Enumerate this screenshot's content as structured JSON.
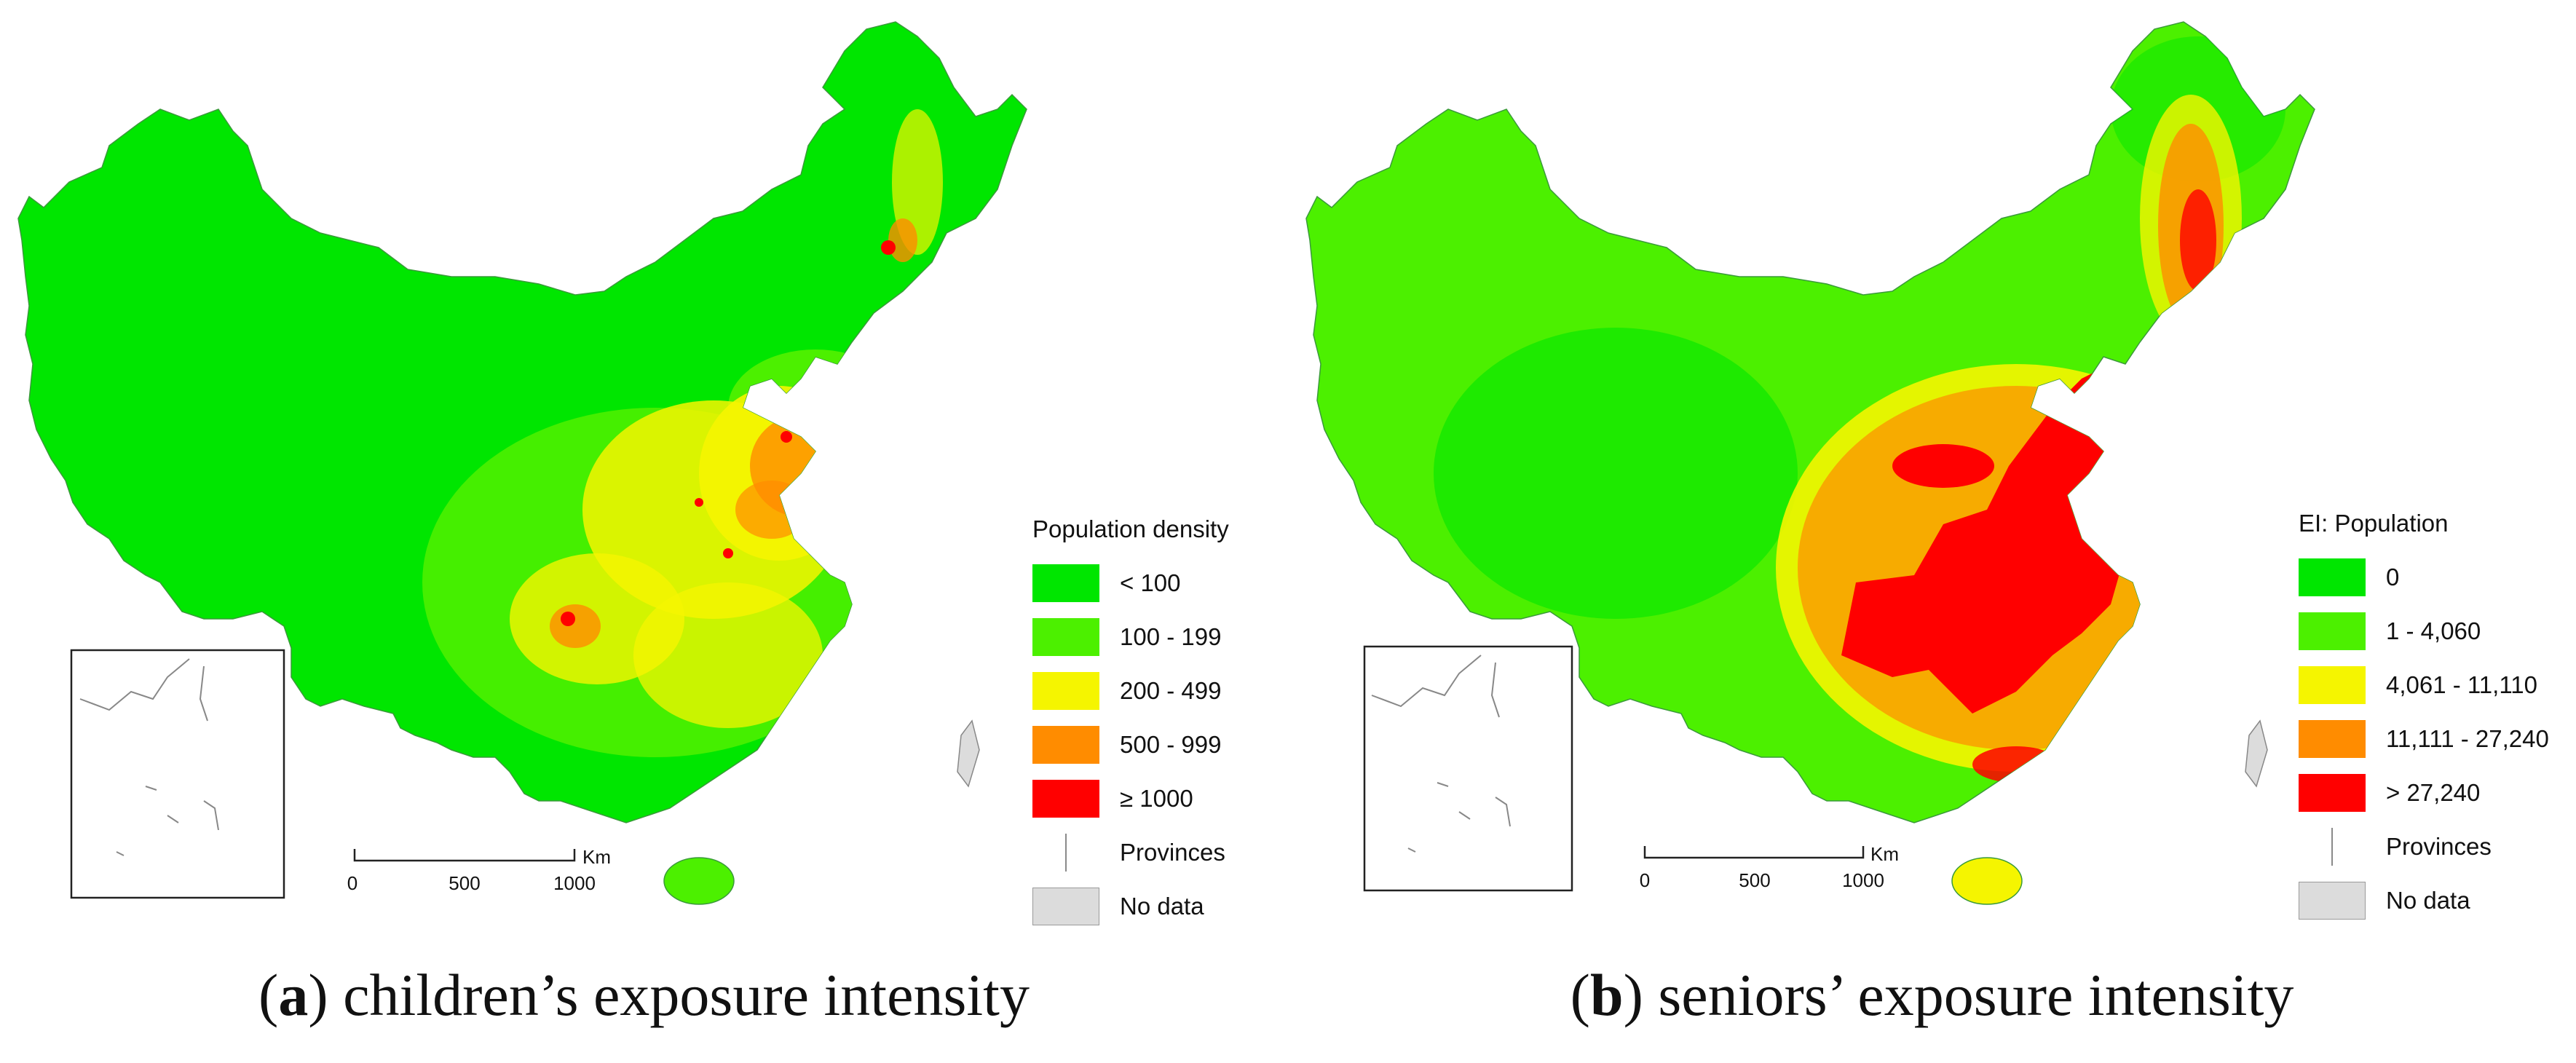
{
  "colors": {
    "green_dark": "#00e600",
    "green_light": "#4cf000",
    "yellow": "#f5f500",
    "orange": "#ff8c00",
    "red": "#ff0000",
    "gray": "#dcdcdc"
  },
  "panels": [
    {
      "id": "a",
      "caption_letter": "a",
      "caption_text": "children’s exposure intensity",
      "legend_title": "Population density",
      "legend": [
        {
          "label": "< 100",
          "color": "#00e600"
        },
        {
          "label": "100 - 199",
          "color": "#4cf000"
        },
        {
          "label": "200 - 499",
          "color": "#f5f500"
        },
        {
          "label": "500 - 999",
          "color": "#ff8c00"
        },
        {
          "label": "≥ 1000",
          "color": "#ff0000"
        }
      ],
      "provinces_label": "Provinces",
      "nodata_label": "No data",
      "scale": {
        "ticks": [
          "0",
          "500",
          "1000"
        ],
        "unit": "Km"
      }
    },
    {
      "id": "b",
      "caption_letter": "b",
      "caption_text": "seniors’ exposure intensity",
      "legend_title": "EI: Population",
      "legend": [
        {
          "label": "0",
          "color": "#00e600"
        },
        {
          "label": "1 - 4,060",
          "color": "#4cf000"
        },
        {
          "label": "4,061 - 11,110",
          "color": "#f5f500"
        },
        {
          "label": "11,111 - 27,240",
          "color": "#ff8c00"
        },
        {
          "label": "> 27,240",
          "color": "#ff0000"
        }
      ],
      "provinces_label": "Provinces",
      "nodata_label": "No data",
      "scale": {
        "ticks": [
          "0",
          "500",
          "1000"
        ],
        "unit": "Km"
      }
    }
  ]
}
